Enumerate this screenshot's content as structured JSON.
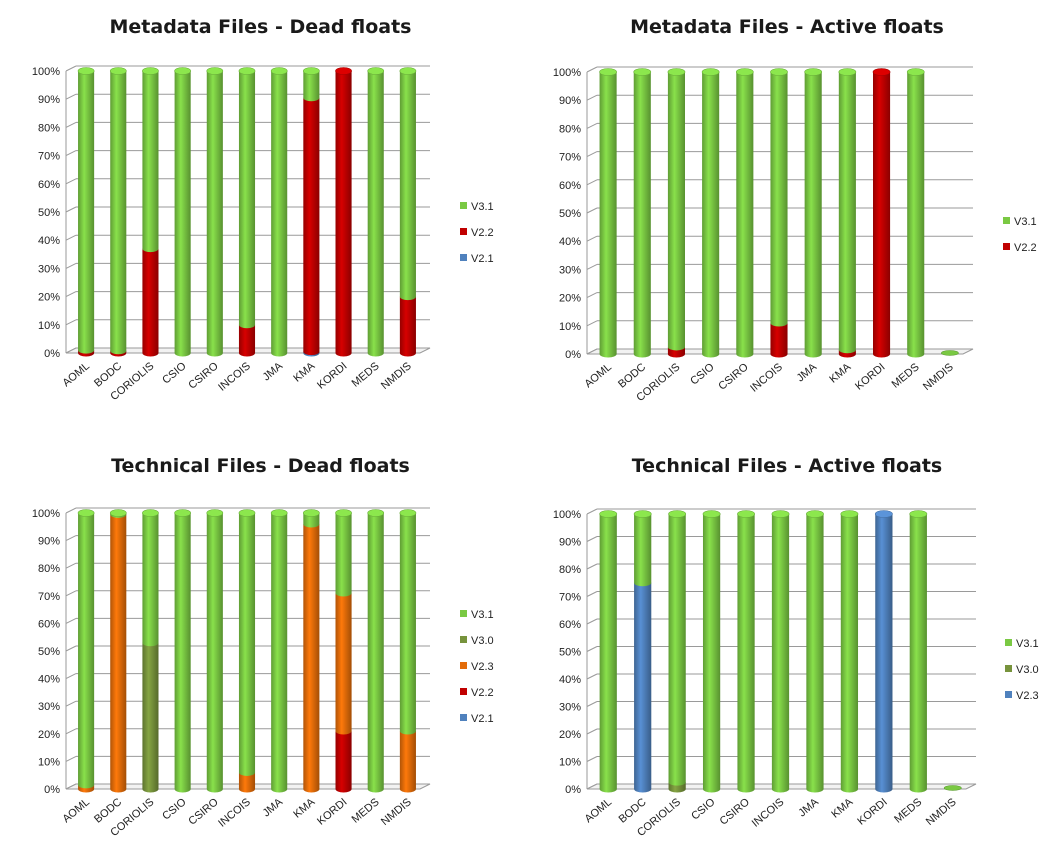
{
  "chart_data": [
    {
      "type": "bar",
      "stacked": true,
      "percent": true,
      "title": "Metadata Files - Dead floats",
      "categories": [
        "AOML",
        "BODC",
        "CORIOLIS",
        "CSIO",
        "CSIRO",
        "INCOIS",
        "JMA",
        "KMA",
        "KORDI",
        "MEDS",
        "NMDIS"
      ],
      "yticks": [
        "0%",
        "10%",
        "20%",
        "30%",
        "40%",
        "50%",
        "60%",
        "70%",
        "80%",
        "90%",
        "100%"
      ],
      "ylim": [
        0,
        100
      ],
      "legend_position": "right",
      "series": [
        {
          "name": "V2.1",
          "color": "#4f81bd",
          "values": [
            0,
            0,
            0,
            0,
            0,
            0,
            0,
            0.5,
            0,
            0,
            0
          ]
        },
        {
          "name": "V2.2",
          "color": "#c00000",
          "values": [
            1,
            0.8,
            37,
            0,
            0,
            10,
            0,
            90,
            100,
            0,
            20
          ]
        },
        {
          "name": "V3.1",
          "color": "#7ac943",
          "values": [
            99,
            99.2,
            63,
            100,
            100,
            90,
            100,
            9.5,
            0,
            100,
            80
          ]
        }
      ]
    },
    {
      "type": "bar",
      "stacked": true,
      "percent": true,
      "title": "Metadata Files - Active floats",
      "categories": [
        "AOML",
        "BODC",
        "CORIOLIS",
        "CSIO",
        "CSIRO",
        "INCOIS",
        "JMA",
        "KMA",
        "KORDI",
        "MEDS",
        "NMDIS"
      ],
      "yticks": [
        "0%",
        "10%",
        "20%",
        "30%",
        "40%",
        "50%",
        "60%",
        "70%",
        "80%",
        "90%",
        "100%"
      ],
      "ylim": [
        0,
        100
      ],
      "legend_position": "right",
      "series": [
        {
          "name": "V2.2",
          "color": "#c00000",
          "values": [
            0,
            0,
            2.5,
            0,
            0,
            11,
            0,
            1.5,
            100,
            0,
            0
          ]
        },
        {
          "name": "V3.1",
          "color": "#7ac943",
          "values": [
            100,
            100,
            97.5,
            100,
            100,
            89,
            100,
            98.5,
            0,
            100,
            0
          ]
        }
      ]
    },
    {
      "type": "bar",
      "stacked": true,
      "percent": true,
      "title": "Technical Files - Dead floats",
      "categories": [
        "AOML",
        "BODC",
        "CORIOLIS",
        "CSIO",
        "CSIRO",
        "INCOIS",
        "JMA",
        "KMA",
        "KORDI",
        "MEDS",
        "NMDIS"
      ],
      "yticks": [
        "0%",
        "10%",
        "20%",
        "30%",
        "40%",
        "50%",
        "60%",
        "70%",
        "80%",
        "90%",
        "100%"
      ],
      "ylim": [
        0,
        100
      ],
      "legend_position": "right",
      "series": [
        {
          "name": "V2.1",
          "color": "#4f81bd",
          "values": [
            0,
            0,
            0,
            0,
            0,
            0,
            0,
            0,
            0,
            0,
            0
          ]
        },
        {
          "name": "V2.2",
          "color": "#c00000",
          "values": [
            0,
            0,
            0,
            0,
            0,
            0,
            0,
            0,
            21,
            0,
            0
          ]
        },
        {
          "name": "V2.3",
          "color": "#e36c09",
          "values": [
            1.5,
            99.5,
            0,
            0,
            0,
            6,
            0,
            96,
            50,
            0,
            21
          ]
        },
        {
          "name": "V3.0",
          "color": "#77933c",
          "values": [
            0,
            0,
            53,
            0,
            0,
            0,
            0,
            0,
            0,
            0,
            0
          ]
        },
        {
          "name": "V3.1",
          "color": "#7ac943",
          "values": [
            98.5,
            0.5,
            47,
            100,
            100,
            94,
            100,
            4,
            29,
            100,
            79
          ]
        }
      ]
    },
    {
      "type": "bar",
      "stacked": true,
      "percent": true,
      "title": "Technical Files - Active floats",
      "categories": [
        "AOML",
        "BODC",
        "CORIOLIS",
        "CSIO",
        "CSIRO",
        "INCOIS",
        "JMA",
        "KMA",
        "KORDI",
        "MEDS",
        "NMDIS"
      ],
      "yticks": [
        "0%",
        "10%",
        "20%",
        "30%",
        "40%",
        "50%",
        "60%",
        "70%",
        "80%",
        "90%",
        "100%"
      ],
      "ylim": [
        0,
        100
      ],
      "legend_position": "right",
      "series": [
        {
          "name": "V2.3",
          "color": "#4f81bd",
          "values": [
            0,
            75,
            0,
            0,
            0,
            0,
            0,
            0,
            100,
            0,
            0
          ]
        },
        {
          "name": "V3.0",
          "color": "#77933c",
          "values": [
            0,
            0,
            2.5,
            0,
            0,
            0,
            0,
            0,
            0,
            0,
            0
          ]
        },
        {
          "name": "V3.1",
          "color": "#7ac943",
          "values": [
            100,
            25,
            97.5,
            100,
            100,
            100,
            100,
            100,
            0,
            100,
            0
          ]
        }
      ],
      "legend_labels": [
        "V3.1",
        "V3.0",
        "V2.3"
      ]
    }
  ]
}
